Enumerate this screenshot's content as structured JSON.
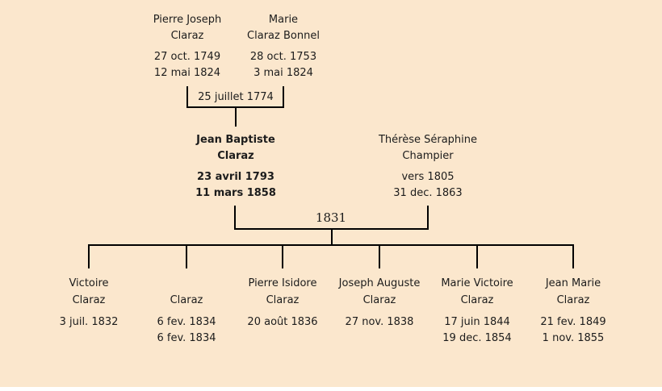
{
  "colors": {
    "background": "#fbe7cd",
    "line": "#000000",
    "text": "#1c1c1c"
  },
  "tree": {
    "generation1": {
      "father": {
        "name_line1": "Pierre Joseph",
        "name_line2": "Claraz",
        "birth": "27 oct. 1749",
        "death": "12 mai 1824"
      },
      "mother": {
        "name_line1": "Marie",
        "name_line2": "Claraz Bonnel",
        "birth": "28 oct. 1753",
        "death": "3 mai 1824"
      },
      "marriage_date": "25 juillet 1774"
    },
    "generation2": {
      "father": {
        "name_line1": "Jean Baptiste",
        "name_line2": "Claraz",
        "birth": "23 avril 1793",
        "death": "11 mars 1858"
      },
      "mother": {
        "name_line1": "Thérèse Séraphine",
        "name_line2": "Champier",
        "birth": "vers 1805",
        "death": "31 dec. 1863"
      },
      "marriage_date": "1831"
    },
    "children": [
      {
        "name_line1": "Victoire",
        "name_line2": "Claraz",
        "birth": "3 juil. 1832",
        "death": ""
      },
      {
        "name_line1": "",
        "name_line2": "Claraz",
        "birth": "6 fev. 1834",
        "death": "6 fev. 1834"
      },
      {
        "name_line1": "Pierre Isidore",
        "name_line2": "Claraz",
        "birth": "20 août 1836",
        "death": ""
      },
      {
        "name_line1": "Joseph Auguste",
        "name_line2": "Claraz",
        "birth": "27 nov. 1838",
        "death": ""
      },
      {
        "name_line1": "Marie Victoire",
        "name_line2": "Claraz",
        "birth": "17 juin 1844",
        "death": "19 dec. 1854"
      },
      {
        "name_line1": "Jean Marie",
        "name_line2": "Claraz",
        "birth": "21 fev. 1849",
        "death": "1 nov. 1855"
      }
    ]
  }
}
